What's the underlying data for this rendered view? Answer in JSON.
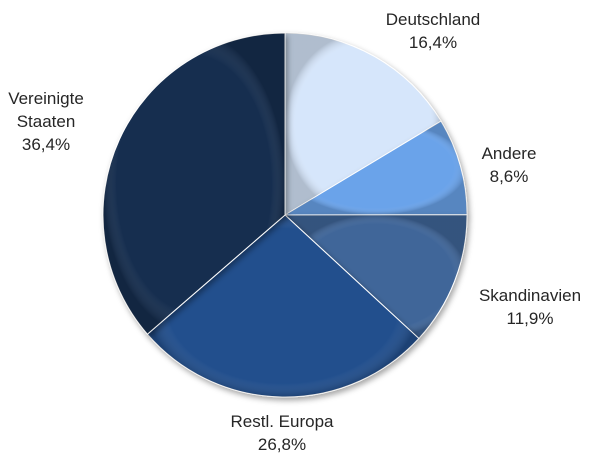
{
  "chart_data": {
    "type": "pie",
    "title": "",
    "start_angle_deg": 0,
    "direction": "clockwise",
    "slices": [
      {
        "label_lines": [
          "Deutschland"
        ],
        "value_text": "16,4%",
        "value": 16.4,
        "color": "#d6e6fb"
      },
      {
        "label_lines": [
          "Andere"
        ],
        "value_text": "8,6%",
        "value": 8.6,
        "color": "#6aa3ea"
      },
      {
        "label_lines": [
          "Skandinavien"
        ],
        "value_text": "11,9%",
        "value": 11.9,
        "color": "#3f6699"
      },
      {
        "label_lines": [
          "Restl. Europa"
        ],
        "value_text": "26,8%",
        "value": 26.8,
        "color": "#234f8d"
      },
      {
        "label_lines": [
          "Vereinigte",
          "Staaten"
        ],
        "value_text": "36,4%",
        "value": 36.4,
        "color": "#182f4f"
      }
    ]
  }
}
